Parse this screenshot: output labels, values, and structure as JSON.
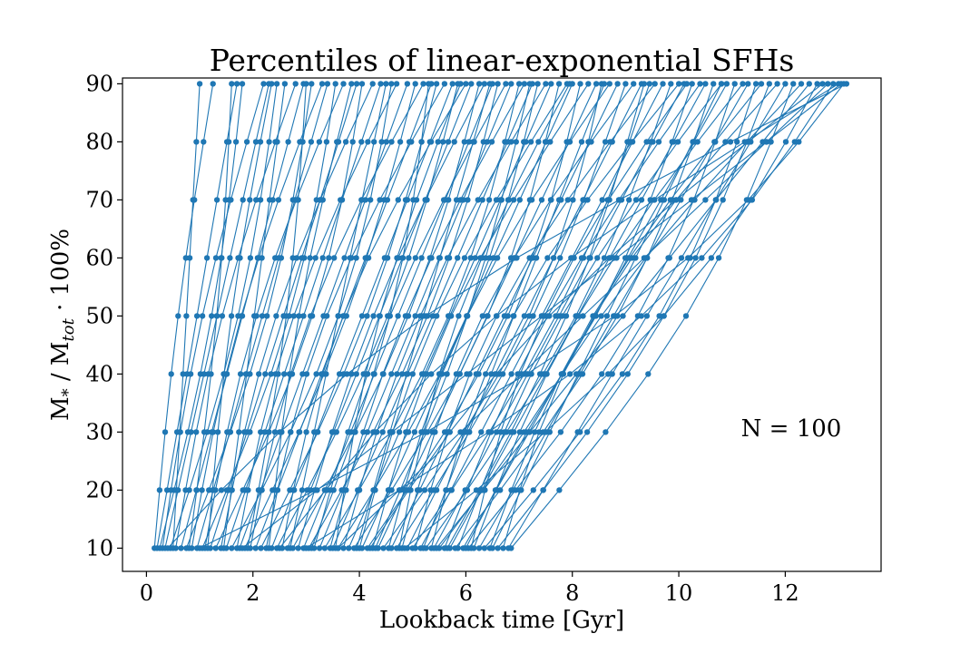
{
  "chart_data": {
    "type": "line",
    "title": "Percentiles of linear-exponential SFHs",
    "xlabel": "Lookback time [Gyr]",
    "ylabel": {
      "main": "M",
      "sub1": "*",
      "mid": " / M",
      "sub2": "tot",
      "end": " · 100%"
    },
    "xlim": [
      -0.45,
      13.8
    ],
    "ylim": [
      6,
      91
    ],
    "xticks": [
      0,
      2,
      4,
      6,
      8,
      10,
      12
    ],
    "yticks": [
      10,
      20,
      30,
      40,
      50,
      60,
      70,
      80,
      90
    ],
    "grid": false,
    "annotation": "N = 100",
    "color": "#1f77b4",
    "n_series": 100,
    "percentiles": [
      10,
      20,
      30,
      40,
      50,
      60,
      70,
      80,
      90
    ],
    "series_endpoints": [
      [
        0.15,
        1.25
      ],
      [
        0.2,
        1.7
      ],
      [
        0.25,
        1.8
      ],
      [
        0.3,
        2.2
      ],
      [
        0.35,
        2.3
      ],
      [
        0.45,
        2.45
      ],
      [
        0.55,
        2.8
      ],
      [
        0.65,
        2.95
      ],
      [
        0.75,
        3.1
      ],
      [
        0.85,
        3.3
      ],
      [
        0.95,
        3.4
      ],
      [
        1.05,
        3.55
      ],
      [
        1.1,
        3.7
      ],
      [
        1.2,
        3.95
      ],
      [
        1.3,
        4.05
      ],
      [
        1.4,
        4.25
      ],
      [
        1.5,
        4.4
      ],
      [
        1.6,
        4.6
      ],
      [
        1.7,
        4.7
      ],
      [
        1.75,
        4.9
      ],
      [
        1.85,
        5.05
      ],
      [
        1.95,
        5.2
      ],
      [
        2.05,
        5.35
      ],
      [
        2.15,
        5.45
      ],
      [
        2.25,
        5.6
      ],
      [
        2.35,
        5.75
      ],
      [
        2.45,
        5.85
      ],
      [
        2.55,
        6.0
      ],
      [
        2.65,
        6.1
      ],
      [
        2.75,
        6.25
      ],
      [
        2.85,
        6.35
      ],
      [
        2.95,
        6.5
      ],
      [
        3.05,
        6.6
      ],
      [
        3.15,
        6.75
      ],
      [
        3.25,
        6.85
      ],
      [
        3.35,
        7.0
      ],
      [
        3.45,
        7.1
      ],
      [
        3.5,
        7.25
      ],
      [
        3.6,
        7.35
      ],
      [
        3.7,
        7.5
      ],
      [
        3.8,
        7.6
      ],
      [
        3.9,
        7.75
      ],
      [
        4.0,
        7.9
      ],
      [
        4.05,
        8.0
      ],
      [
        4.15,
        8.15
      ],
      [
        4.25,
        8.3
      ],
      [
        4.35,
        8.45
      ],
      [
        4.45,
        8.55
      ],
      [
        4.55,
        8.7
      ],
      [
        4.6,
        8.85
      ],
      [
        4.7,
        9.0
      ],
      [
        4.8,
        9.15
      ],
      [
        4.9,
        9.3
      ],
      [
        5.0,
        9.45
      ],
      [
        5.05,
        9.55
      ],
      [
        5.15,
        9.7
      ],
      [
        5.25,
        9.85
      ],
      [
        5.35,
        10.0
      ],
      [
        5.4,
        10.1
      ],
      [
        5.5,
        10.25
      ],
      [
        5.6,
        10.4
      ],
      [
        5.7,
        10.5
      ],
      [
        5.8,
        10.65
      ],
      [
        5.85,
        10.8
      ],
      [
        5.95,
        10.9
      ],
      [
        6.05,
        11.05
      ],
      [
        6.15,
        11.2
      ],
      [
        6.25,
        11.3
      ],
      [
        6.35,
        11.45
      ],
      [
        6.45,
        11.55
      ],
      [
        0.5,
        1.0
      ],
      [
        0.8,
        1.6
      ],
      [
        1.15,
        2.35
      ],
      [
        1.45,
        2.6
      ],
      [
        1.9,
        3.0
      ],
      [
        2.3,
        3.85
      ],
      [
        2.7,
        4.5
      ],
      [
        3.1,
        5.3
      ],
      [
        3.55,
        5.9
      ],
      [
        3.95,
        6.45
      ],
      [
        4.3,
        7.2
      ],
      [
        4.75,
        7.95
      ],
      [
        5.2,
        8.6
      ],
      [
        5.65,
        9.35
      ],
      [
        6.1,
        10.15
      ],
      [
        6.5,
        10.8
      ],
      [
        6.6,
        11.7
      ],
      [
        6.7,
        11.85
      ],
      [
        6.8,
        12.0
      ],
      [
        6.85,
        12.15
      ],
      [
        6.0,
        12.3
      ],
      [
        5.45,
        12.45
      ],
      [
        4.85,
        12.6
      ],
      [
        4.2,
        12.7
      ],
      [
        3.6,
        12.8
      ],
      [
        3.0,
        12.9
      ],
      [
        2.5,
        13.0
      ],
      [
        1.8,
        13.05
      ],
      [
        1.0,
        13.1
      ],
      [
        0.4,
        13.15
      ]
    ]
  }
}
